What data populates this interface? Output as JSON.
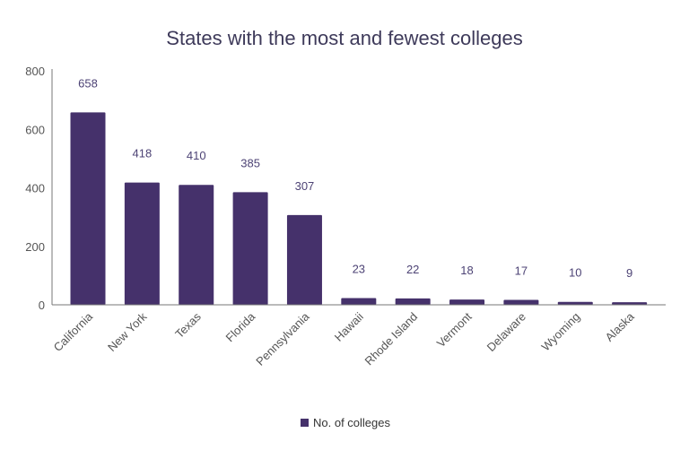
{
  "chart_data": {
    "type": "bar",
    "title": "States with the most and fewest colleges",
    "categories": [
      "California",
      "New York",
      "Texas",
      "Florida",
      "Pennsylvania",
      "Hawaii",
      "Rhode Island",
      "Vermont",
      "Delaware",
      "Wyoming",
      "Alaska"
    ],
    "series": [
      {
        "name": "No. of colleges",
        "values": [
          658,
          418,
          410,
          385,
          307,
          23,
          22,
          18,
          17,
          10,
          9
        ]
      }
    ],
    "ylim": [
      0,
      800
    ],
    "yticks": [
      0,
      200,
      400,
      600,
      800
    ],
    "grid": false,
    "legend": "bottom",
    "colors": {
      "bar": "#45316b"
    }
  }
}
